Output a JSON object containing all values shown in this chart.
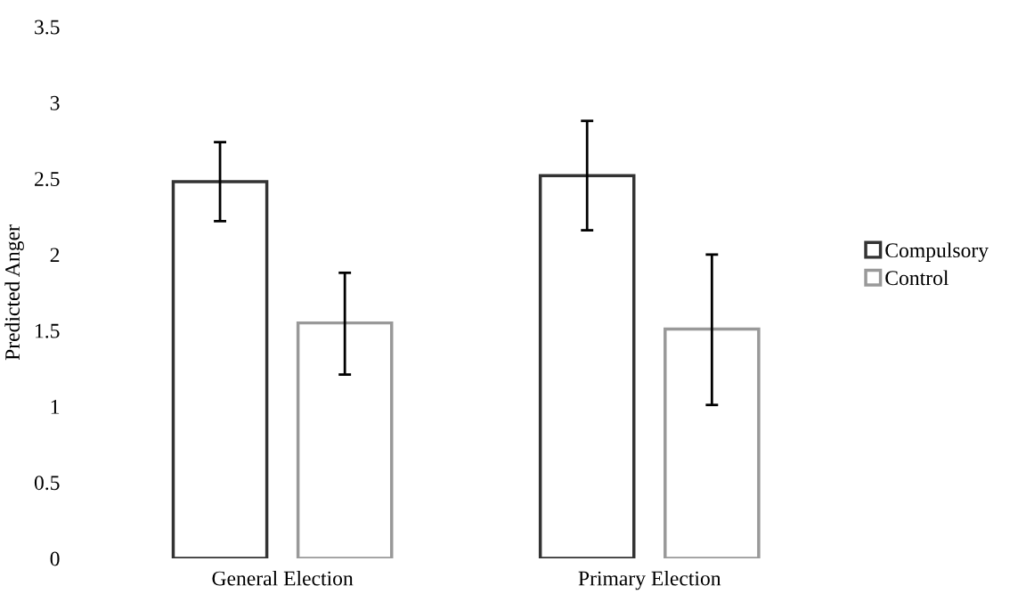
{
  "chart_data": {
    "type": "bar",
    "ylabel": "Predicted Anger",
    "categories": [
      "General Election",
      "Primary Election"
    ],
    "series": [
      {
        "name": "Compulsory",
        "color": "#333333",
        "values": [
          2.48,
          2.52
        ],
        "errors": [
          [
            2.22,
            2.74
          ],
          [
            2.16,
            2.88
          ]
        ]
      },
      {
        "name": "Control",
        "color": "#999999",
        "values": [
          1.55,
          1.51
        ],
        "errors": [
          [
            1.21,
            1.88
          ],
          [
            1.01,
            2.0
          ]
        ]
      }
    ],
    "ylim": [
      0,
      3.5
    ],
    "yticks": [
      0,
      0.5,
      1,
      1.5,
      2,
      2.5,
      3,
      3.5
    ],
    "grid": false,
    "legend": "right"
  }
}
